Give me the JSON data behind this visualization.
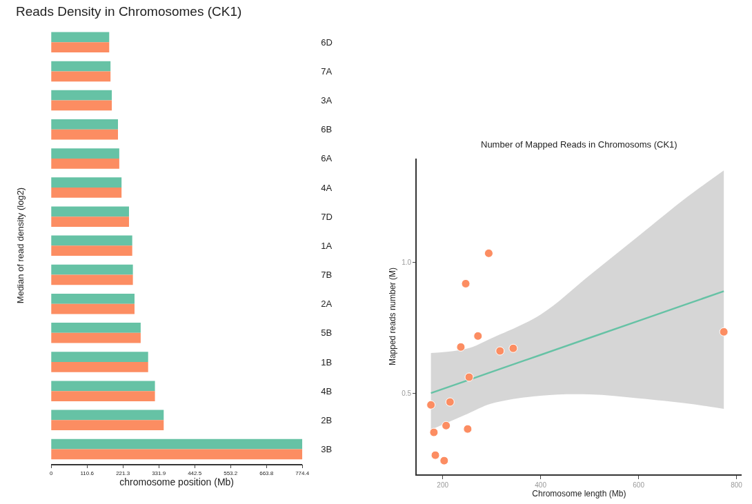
{
  "chart_data": [
    {
      "type": "bar",
      "orientation": "horizontal",
      "title": "Reads Density in Chromosomes (CK1)",
      "xlabel": "chromosome position (Mb)",
      "ylabel": "Median of read density (log2)",
      "categories": [
        "6D",
        "7A",
        "3A",
        "6B",
        "6A",
        "4A",
        "7D",
        "1A",
        "7B",
        "2A",
        "5B",
        "1B",
        "4B",
        "2B",
        "3B"
      ],
      "series": [
        {
          "color": "#66c2a5",
          "values": [
            179,
            183,
            187,
            206,
            210,
            217,
            240,
            250,
            252,
            257,
            276,
            299,
            320,
            347,
            774.4
          ]
        },
        {
          "color": "#fc8d62",
          "values": [
            179,
            183,
            187,
            206,
            210,
            217,
            240,
            250,
            252,
            257,
            276,
            299,
            320,
            347,
            774.4
          ]
        }
      ],
      "xlim": [
        0,
        774.4
      ],
      "xticks": [
        0,
        110.6,
        221.3,
        331.9,
        442.5,
        553.2,
        663.8,
        774.4
      ]
    },
    {
      "type": "scatter",
      "title": "Number of Mapped Reads in Chromosoms (CK1)",
      "xlabel": "Chromosome length (Mb)",
      "ylabel": "Mapped reads number (M)",
      "series": [
        {
          "type": "line",
          "color": "#66c2a5",
          "x": [
            176,
            250,
            300,
            400,
            500,
            600,
            700,
            774
          ],
          "values": [
            0.5,
            0.548,
            0.581,
            0.646,
            0.711,
            0.776,
            0.841,
            0.889
          ],
          "lower": [
            0.36,
            0.42,
            0.46,
            0.49,
            0.495,
            0.48,
            0.46,
            0.44
          ],
          "upper": [
            0.653,
            0.67,
            0.71,
            0.8,
            0.95,
            1.1,
            1.25,
            1.35
          ]
        },
        {
          "type": "scatter",
          "color": "#fc8d62",
          "marker": "circle",
          "x": [
            176,
            182,
            185,
            203,
            207,
            215,
            237,
            247,
            251,
            254,
            272,
            294,
            317,
            344,
            774
          ],
          "values": [
            0.455,
            0.35,
            0.263,
            0.242,
            0.376,
            0.466,
            0.676,
            0.918,
            0.363,
            0.561,
            0.718,
            1.034,
            0.661,
            0.671,
            0.734
          ]
        }
      ],
      "xlim": [
        147,
        810
      ],
      "xticks": [
        200,
        400,
        600,
        800
      ],
      "ylim": [
        0.19,
        1.395
      ],
      "yticks": [
        0.5,
        {
          "value": 1,
          "label": "1.0"
        }
      ]
    }
  ]
}
